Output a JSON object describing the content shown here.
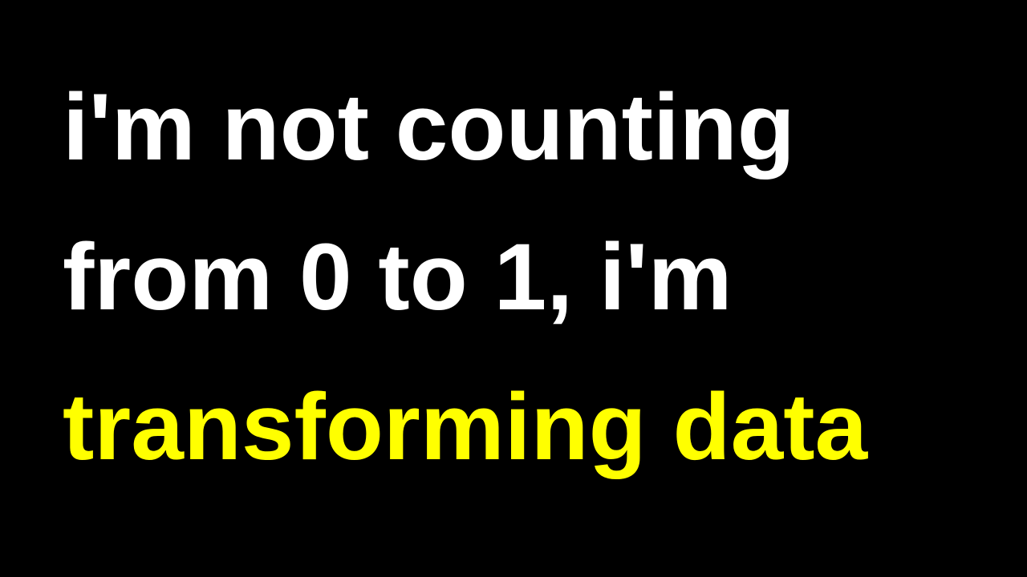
{
  "slide": {
    "lines": [
      {
        "text": "i'm not counting",
        "color": "#ffffff"
      },
      {
        "text": "from 0 to 1, i'm",
        "color": "#ffffff"
      },
      {
        "text": "transforming data",
        "color": "#ffff00"
      }
    ],
    "background": "#000000"
  }
}
